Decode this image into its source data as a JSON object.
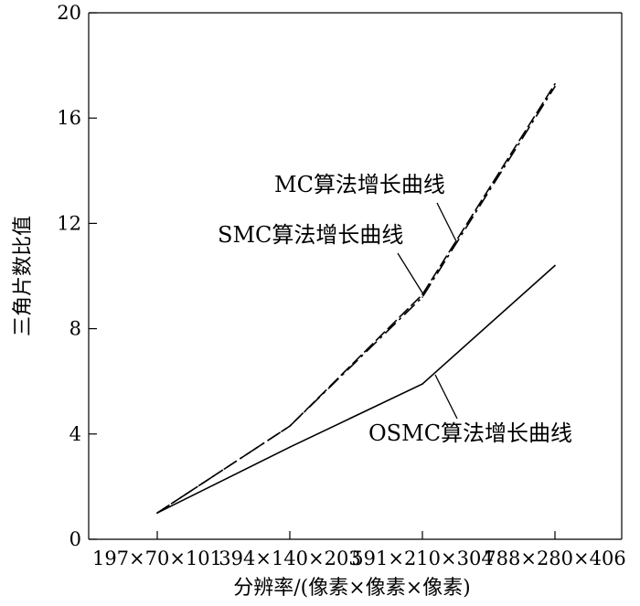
{
  "chart_data": {
    "type": "line",
    "title": "",
    "xlabel": "分辨率/(像素×像素×像素)",
    "ylabel": "三角片数比值",
    "categories": [
      "197×70×101",
      "394×140×203",
      "591×210×304",
      "788×280×406"
    ],
    "ylim": [
      0,
      20
    ],
    "yticks": [
      0,
      4,
      8,
      12,
      16,
      20
    ],
    "grid": false,
    "series": [
      {
        "name": "MC算法增长曲线",
        "values": [
          1.0,
          4.3,
          9.2,
          17.2
        ],
        "style": "dashdot"
      },
      {
        "name": "SMC算法增长曲线",
        "values": [
          1.0,
          4.3,
          9.3,
          17.3
        ],
        "style": "dashed"
      },
      {
        "name": "OSMC算法增长曲线",
        "values": [
          1.0,
          3.5,
          5.9,
          10.4
        ],
        "style": "solid"
      }
    ],
    "annotations": [
      {
        "text": "MC算法增长曲线",
        "series": 0
      },
      {
        "text": "SMC算法增长曲线",
        "series": 1
      },
      {
        "text": "OSMC算法增长曲线",
        "series": 2
      }
    ]
  },
  "colors": {
    "line": "#000000",
    "background": "#ffffff"
  }
}
